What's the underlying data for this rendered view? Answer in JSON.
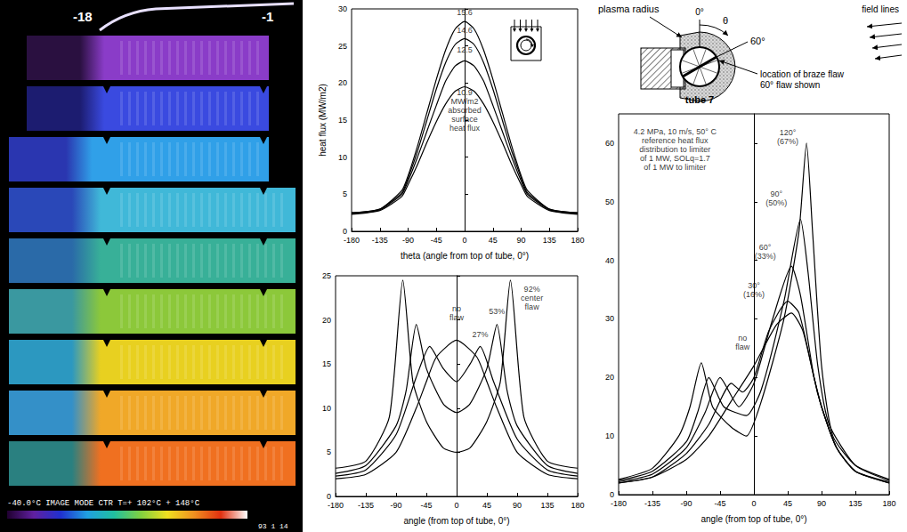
{
  "chart_data": [
    {
      "type": "line",
      "color": "#000000",
      "grid": false,
      "x_label": "theta (angle from top of tube, 0°)",
      "y_label": "heat flux (MW/m2)",
      "xlim": [
        -180,
        180
      ],
      "xticks": [
        -180,
        -135,
        -90,
        -45,
        0,
        45,
        90,
        135,
        180
      ],
      "ylim": [
        0,
        30
      ],
      "yticks": [
        0,
        5,
        10,
        15,
        20,
        25,
        30
      ],
      "series": [
        {
          "x": [
            -180,
            -135,
            -100,
            -90,
            -75,
            -60,
            -45,
            -30,
            -15,
            0,
            15,
            30,
            45,
            60,
            75,
            90,
            100,
            135,
            180
          ],
          "values": [
            2.5,
            3,
            5.5,
            7.5,
            11.5,
            16,
            20.5,
            24.5,
            27.3,
            28.3,
            27.3,
            24.5,
            20.5,
            16,
            11.5,
            7.5,
            5.5,
            3,
            2.5
          ]
        },
        {
          "x": [
            -180,
            -135,
            -100,
            -90,
            -75,
            -60,
            -45,
            -30,
            -15,
            0,
            15,
            30,
            45,
            60,
            75,
            90,
            100,
            135,
            180
          ],
          "values": [
            2.5,
            3,
            5.2,
            7.2,
            10.8,
            15,
            19.2,
            22.8,
            25.2,
            26,
            25.2,
            22.8,
            19.2,
            15,
            10.8,
            7.2,
            5.2,
            3,
            2.5
          ]
        },
        {
          "x": [
            -180,
            -135,
            -100,
            -90,
            -75,
            -60,
            -45,
            -30,
            -15,
            0,
            15,
            30,
            45,
            60,
            75,
            90,
            100,
            135,
            180
          ],
          "values": [
            2.4,
            2.9,
            5,
            6.8,
            10,
            13.5,
            17,
            20.3,
            22.3,
            23,
            22.3,
            20.3,
            17,
            13.5,
            10,
            6.8,
            5,
            2.9,
            2.4
          ]
        },
        {
          "x": [
            -180,
            -135,
            -100,
            -90,
            -75,
            -60,
            -45,
            -30,
            -15,
            0,
            15,
            30,
            45,
            60,
            75,
            90,
            100,
            135,
            180
          ],
          "values": [
            2.3,
            2.8,
            4.7,
            6.3,
            9,
            12,
            14.8,
            17.2,
            18.9,
            19.5,
            18.9,
            17.2,
            14.8,
            12,
            9,
            6.3,
            4.7,
            2.8,
            2.3
          ]
        }
      ],
      "annotations": [
        {
          "text": "15.6",
          "x": 0,
          "y": 29.5
        },
        {
          "text": "14.6",
          "x": 0,
          "y": 27.1
        },
        {
          "text": "12.5",
          "x": 0,
          "y": 24.5
        },
        {
          "text": "10.9\nMW/m2\nabsorbed\nsurface\nheat flux",
          "x": 0,
          "y": 16.3
        }
      ]
    },
    {
      "type": "line",
      "color": "#000000",
      "grid": false,
      "x_label": "angle (from top of tube, 0°)",
      "xlim": [
        -180,
        180
      ],
      "xticks": [
        -180,
        -135,
        -90,
        -45,
        0,
        45,
        90,
        135,
        180
      ],
      "ylim": [
        0,
        25
      ],
      "yticks": [
        0,
        5,
        10,
        15,
        20,
        25
      ],
      "series": [
        {
          "x": [
            -180,
            -135,
            -90,
            -60,
            -45,
            -30,
            0,
            30,
            45,
            60,
            90,
            135,
            180
          ],
          "values": [
            2,
            2.5,
            5,
            10,
            13,
            15.8,
            17.7,
            15.8,
            13,
            10,
            5,
            2.5,
            2
          ]
        },
        {
          "x": [
            -180,
            -135,
            -90,
            -60,
            -40,
            -20,
            0,
            20,
            35,
            55,
            90,
            135,
            180
          ],
          "values": [
            2.3,
            3,
            7,
            13.5,
            17,
            14.5,
            13,
            15,
            17,
            13,
            6.5,
            3,
            2.3
          ]
        },
        {
          "x": [
            -180,
            -135,
            -90,
            -75,
            -60,
            -45,
            -20,
            0,
            20,
            45,
            60,
            75,
            90,
            135,
            180
          ],
          "values": [
            2.6,
            3.5,
            8,
            12,
            19.5,
            14.5,
            10.5,
            9.5,
            10.5,
            14.5,
            19.5,
            12,
            8,
            3.5,
            2.6
          ]
        },
        {
          "x": [
            -180,
            -135,
            -100,
            -80,
            -65,
            -45,
            -20,
            0,
            20,
            45,
            65,
            80,
            100,
            135,
            180
          ],
          "values": [
            3.2,
            4,
            9,
            24.5,
            13,
            8.5,
            5.5,
            5,
            5.5,
            8.5,
            13,
            24.5,
            9,
            4,
            3.2
          ]
        }
      ],
      "annotations": [
        {
          "text": "no\nflaw",
          "x": 0,
          "y": 20.8
        },
        {
          "text": "27%",
          "x": 35,
          "y": 18.3
        },
        {
          "text": "53%",
          "x": 60,
          "y": 21
        },
        {
          "text": "92%\ncenter\nflaw",
          "x": 112,
          "y": 22.5
        }
      ]
    },
    {
      "type": "line",
      "color": "#000000",
      "grid": false,
      "x_label": "angle (from top of tube, 0°)",
      "xlim": [
        -180,
        180
      ],
      "xticks": [
        -180,
        -135,
        -90,
        -45,
        0,
        45,
        90,
        135,
        180
      ],
      "ylim": [
        0,
        65
      ],
      "yticks": [
        0,
        10,
        20,
        30,
        40,
        50,
        60
      ],
      "series": [
        {
          "x": [
            -180,
            -135,
            -90,
            -60,
            -30,
            0,
            30,
            50,
            65,
            80,
            90,
            110,
            135,
            180
          ],
          "values": [
            2,
            3,
            6,
            10,
            16,
            22,
            29,
            31,
            28,
            20,
            15,
            8,
            4,
            2
          ]
        },
        {
          "x": [
            -180,
            -135,
            -90,
            -60,
            -30,
            -15,
            0,
            20,
            45,
            60,
            80,
            90,
            110,
            135,
            180
          ],
          "values": [
            2,
            3,
            7,
            12,
            19,
            17.5,
            20,
            28,
            33,
            31,
            20,
            15,
            8,
            4,
            2
          ]
        },
        {
          "x": [
            -180,
            -135,
            -90,
            -65,
            -45,
            -20,
            0,
            25,
            50,
            62,
            80,
            90,
            110,
            135,
            180
          ],
          "values": [
            2.2,
            3.5,
            8,
            14,
            20,
            15,
            19,
            30,
            39,
            34,
            20,
            15,
            8,
            4,
            2.2
          ]
        },
        {
          "x": [
            -180,
            -135,
            -90,
            -75,
            -60,
            -40,
            -10,
            10,
            40,
            62,
            72,
            85,
            100,
            135,
            180
          ],
          "values": [
            2.4,
            4,
            9,
            14,
            20,
            15,
            13.5,
            18,
            33,
            47,
            38,
            22,
            12,
            5,
            2.4
          ]
        },
        {
          "x": [
            -180,
            -135,
            -100,
            -85,
            -70,
            -55,
            -30,
            -10,
            10,
            40,
            60,
            70,
            78,
            90,
            105,
            135,
            180
          ],
          "values": [
            2.6,
            4.5,
            10,
            15,
            22.5,
            15,
            11.5,
            10,
            16,
            30,
            45,
            60,
            45,
            22,
            10,
            5,
            2.6
          ]
        }
      ],
      "annotations": [
        {
          "text": "4.2 MPa, 10 m/s, 50° C\nreference heat flux\ndistribution to limiter\nof 1 MW, SOLq=1.7\nof 1 MW to limiter",
          "x": -105,
          "y": 59
        },
        {
          "text": "120°\n(67%)",
          "x": 45,
          "y": 61
        },
        {
          "text": "90°\n(50%)",
          "x": 30,
          "y": 50.5
        },
        {
          "text": "60°\n(33%)",
          "x": 15,
          "y": 41.5
        },
        {
          "text": "30°\n(16%)",
          "x": 0,
          "y": 35
        },
        {
          "text": "no\nflaw",
          "x": -15,
          "y": 26
        }
      ]
    }
  ],
  "thermal_image": {
    "labels": [
      "-18",
      "-1"
    ],
    "scale_text": "-40.0°C IMAGE MODE CTR T=+ 102°C + 148°C",
    "stamp": "93 1 14"
  },
  "diagram": {
    "title": "tube 7",
    "plasma_label": "plasma radius",
    "zero_label": "0°",
    "theta_label": "θ",
    "angle_label": "60°",
    "field_label": "field lines",
    "flaw_label": "location of braze flaw",
    "flaw_note": "60° flaw shown"
  }
}
